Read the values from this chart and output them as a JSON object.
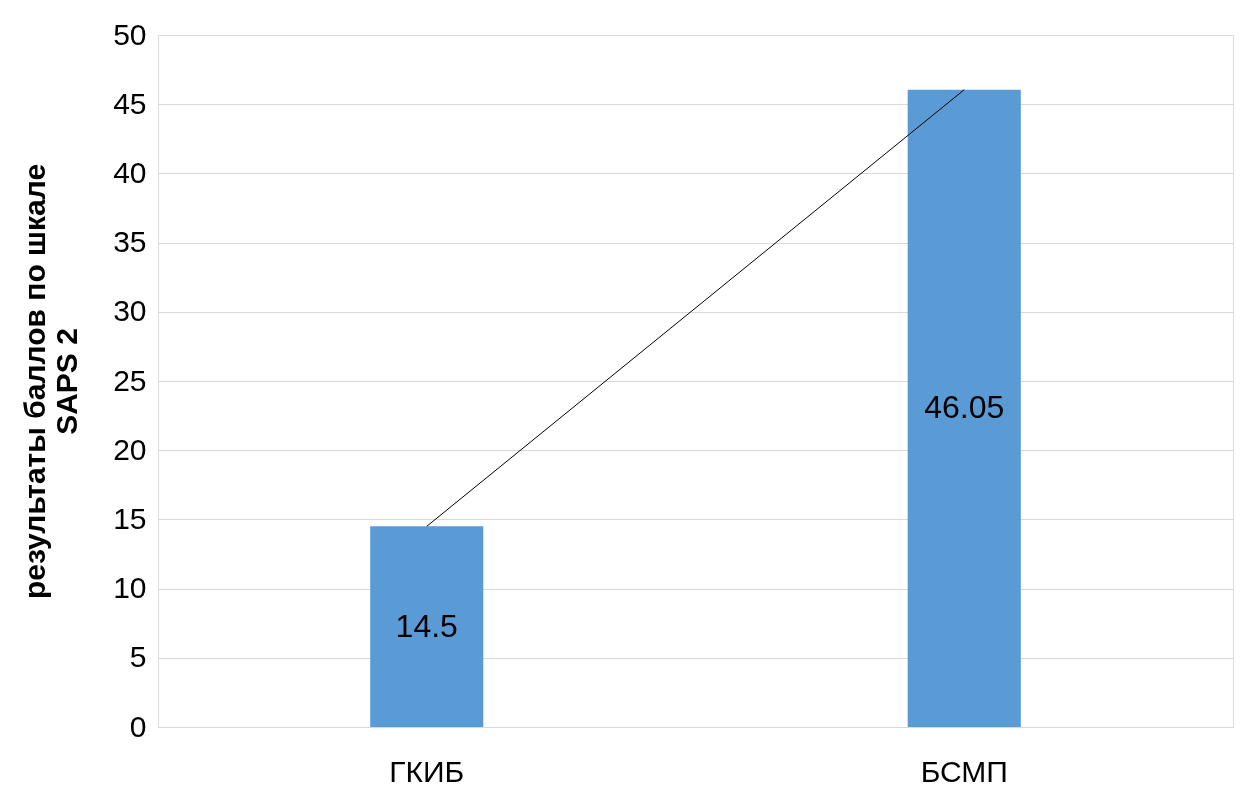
{
  "chart_data": {
    "type": "bar",
    "categories": [
      "ГКИБ",
      "БСМП"
    ],
    "ylabel": "результаты баллов по шкале\nSAPS 2",
    "series": [
      {
        "color": "#5b9bd5",
        "values": [
          14.5,
          46.05
        ],
        "value_labels": [
          "14.5",
          "46.05"
        ]
      },
      {
        "type": "line",
        "color": "#000000",
        "values": [
          14.5,
          46.05
        ]
      }
    ],
    "ylim": [
      0,
      50
    ],
    "yticks": [
      0,
      5,
      10,
      15,
      20,
      25,
      30,
      35,
      40,
      45,
      50
    ],
    "grid": "y"
  }
}
